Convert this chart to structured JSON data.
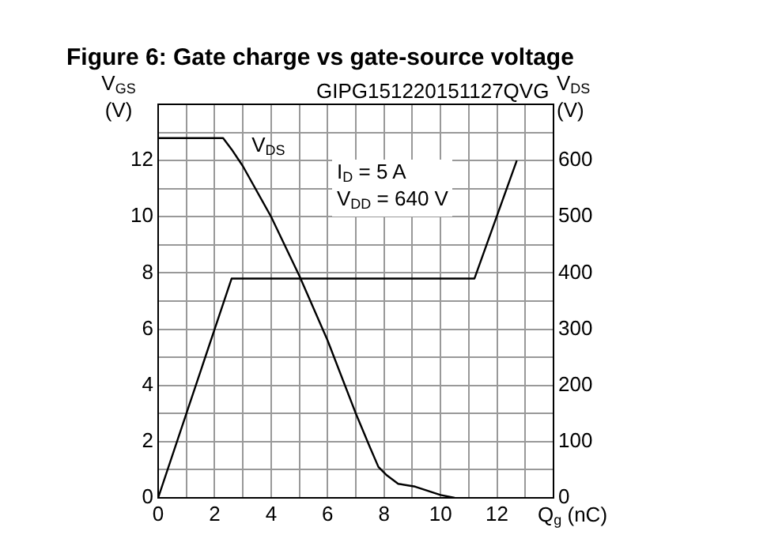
{
  "chart_data": {
    "type": "line",
    "title": "Figure 6: Gate charge vs gate-source voltage",
    "xlabel": "Q$_{g}$ (nC)",
    "ylabel": "V$_{GS}$ (V)",
    "y2label": "V$_{DS}$ (V)",
    "annotations": [
      "GIPG151220151127QVG",
      "I$_{D}$ = 5 A",
      "V$_{DD}$ = 640 V"
    ],
    "series": [
      {
        "color": "#000000",
        "x": [
          0,
          2.6,
          11.2,
          12.7
        ],
        "values": [
          0,
          7.8,
          7.8,
          12
        ]
      },
      {
        "name": "V$_{DS}$",
        "color": "#000000",
        "axis": "y2",
        "x": [
          0,
          2.3,
          2.6,
          3,
          4,
          5,
          6,
          7,
          7.5,
          7.8,
          8.1,
          8.5,
          9.1,
          10,
          10.5
        ],
        "values": [
          640,
          640,
          620,
          590,
          500,
          395,
          280,
          150,
          90,
          55,
          40,
          25,
          20,
          5,
          0
        ]
      }
    ],
    "xlim": [
      0,
      14
    ],
    "ylim": [
      0,
      14
    ],
    "y2lim": [
      0,
      700
    ],
    "xticks": [
      0,
      {
        "value": 1,
        "label": null
      },
      2,
      {
        "value": 3,
        "label": null
      },
      4,
      {
        "value": 5,
        "label": null
      },
      6,
      {
        "value": 7,
        "label": null
      },
      8,
      {
        "value": 9,
        "label": null
      },
      10,
      {
        "value": 11,
        "label": null
      },
      12,
      {
        "value": 13,
        "label": null
      },
      {
        "value": 14,
        "label": null
      }
    ],
    "yticks": [
      0,
      {
        "value": 1,
        "label": null
      },
      2,
      {
        "value": 3,
        "label": null
      },
      4,
      {
        "value": 5,
        "label": null
      },
      6,
      {
        "value": 7,
        "label": null
      },
      8,
      {
        "value": 9,
        "label": null
      },
      10,
      {
        "value": 11,
        "label": null
      },
      12,
      {
        "value": 13,
        "label": null
      },
      {
        "value": 14,
        "label": null
      }
    ],
    "y2ticks": [
      0,
      100,
      200,
      300,
      400,
      500,
      600
    ],
    "grid": true,
    "marker": "none",
    "line_style": "solid"
  }
}
